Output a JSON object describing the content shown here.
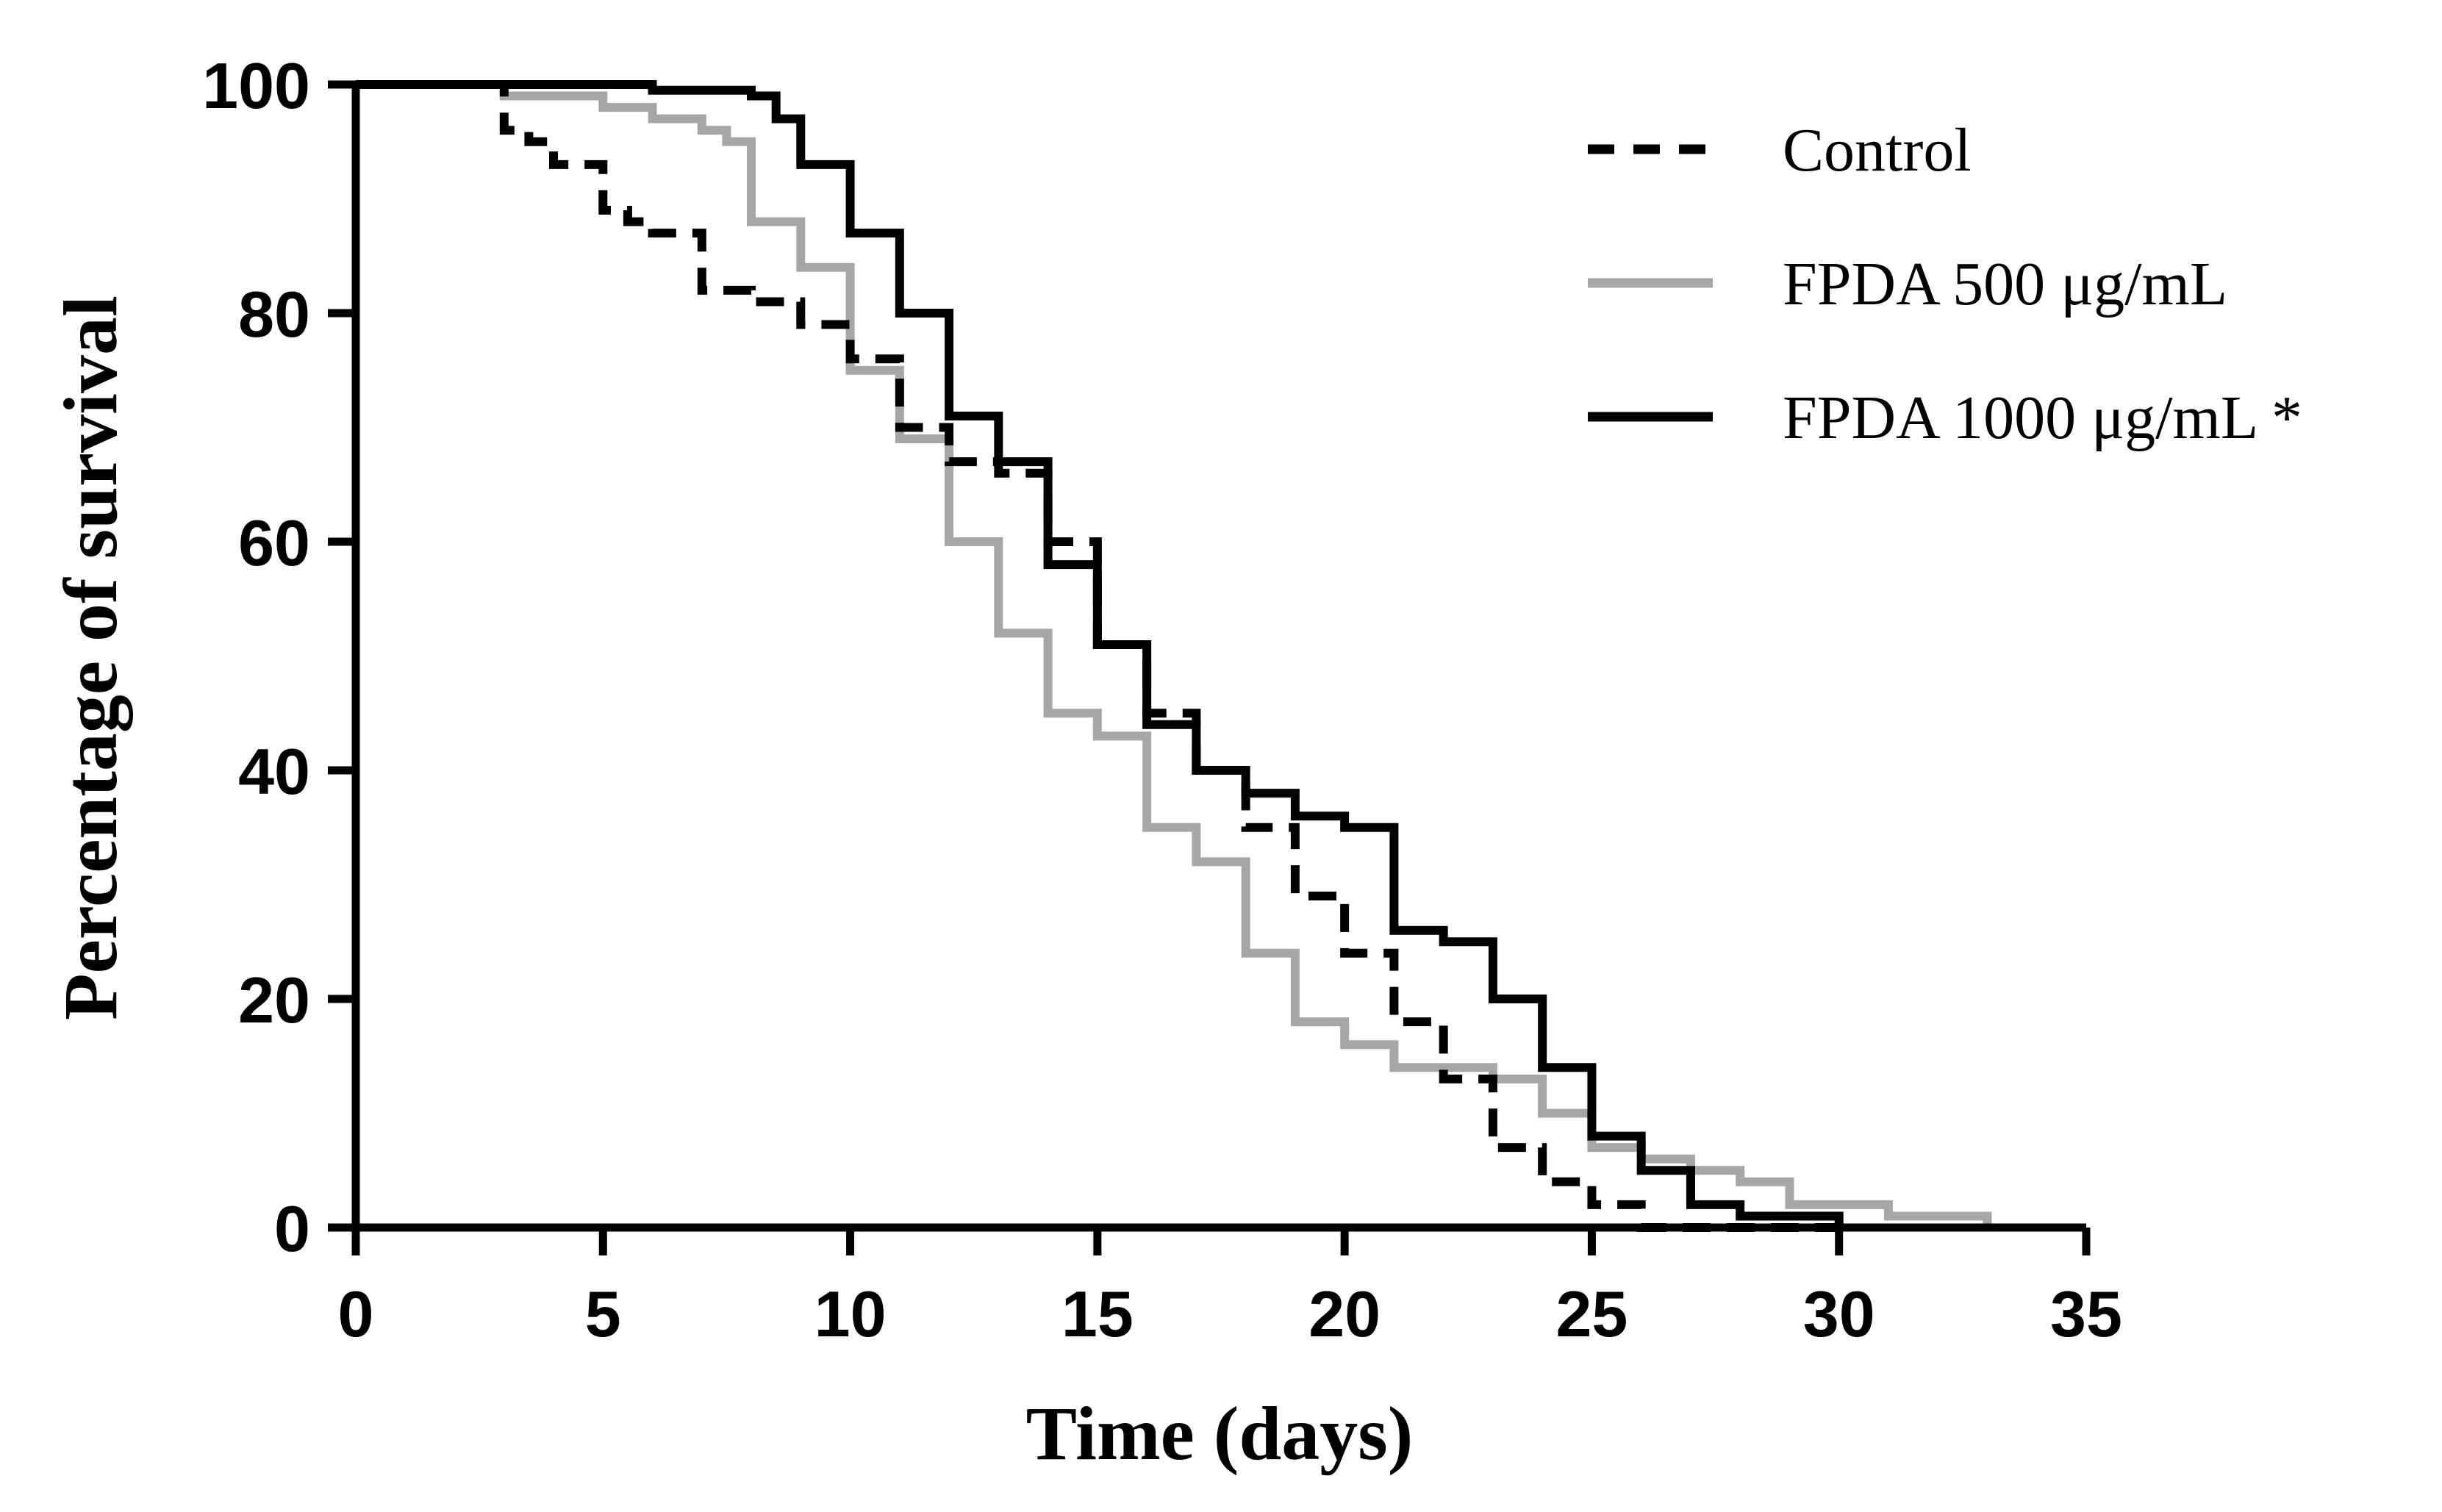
{
  "chart_data": {
    "type": "line",
    "subtype": "step (Kaplan-Meier survival)",
    "title": "",
    "xlabel": "Time (days)",
    "ylabel": "Percentage of survival",
    "xlim": [
      0,
      35
    ],
    "ylim": [
      0,
      100
    ],
    "xticks": [
      0,
      5,
      10,
      15,
      20,
      25,
      30,
      35
    ],
    "yticks": [
      0,
      20,
      40,
      60,
      80,
      100
    ],
    "xtick_labels": [
      "0",
      "5",
      "10",
      "15",
      "20",
      "25",
      "30",
      "35"
    ],
    "ytick_labels": [
      "0",
      "20",
      "40",
      "60",
      "80",
      "100"
    ],
    "grid": false,
    "legend_position": "top-right",
    "series": [
      {
        "name": "Control",
        "line_style": "dashed",
        "color": "#000000",
        "x": [
          0,
          3,
          3.5,
          4,
          5,
          5.5,
          6,
          7,
          8,
          9,
          10,
          11,
          12,
          13,
          14,
          15,
          16,
          17,
          18,
          19,
          20,
          21,
          22,
          23,
          24,
          25,
          26,
          28,
          30
        ],
        "y": [
          100,
          96,
          95,
          93,
          89,
          88,
          87,
          82,
          81,
          79,
          76,
          70,
          67,
          66,
          60,
          51,
          45,
          40,
          35,
          29,
          24,
          18,
          13,
          7,
          4,
          2,
          0,
          0,
          0
        ]
      },
      {
        "name": "FPDA 500 μg/mL",
        "line_style": "solid",
        "color": "#a6a6a6",
        "x": [
          0,
          3,
          5,
          6,
          7,
          7.5,
          8,
          9,
          10,
          11,
          12,
          13,
          14,
          15,
          16,
          17,
          18,
          19,
          20,
          21,
          23,
          24,
          25,
          26,
          27,
          28,
          29,
          30,
          31,
          33
        ],
        "y": [
          100,
          99,
          98,
          97,
          96,
          95,
          88,
          84,
          75,
          69,
          60,
          52,
          45,
          43,
          35,
          32,
          24,
          18,
          16,
          14,
          13,
          10,
          7,
          6,
          5,
          4,
          2,
          2,
          1,
          0
        ]
      },
      {
        "name": "FPDA 1000 μg/mL *",
        "line_style": "solid",
        "color": "#000000",
        "x": [
          0,
          6,
          8,
          8.5,
          9,
          10,
          11,
          12,
          13,
          14,
          15,
          16,
          17,
          18,
          19,
          20,
          21,
          22,
          23,
          24,
          25,
          26,
          27,
          28,
          30
        ],
        "y": [
          100,
          99.5,
          99,
          97,
          93,
          87,
          80,
          71,
          67,
          58,
          51,
          44,
          40,
          38,
          36,
          35,
          26,
          25,
          20,
          14,
          8,
          5,
          2,
          1,
          0
        ]
      }
    ]
  }
}
